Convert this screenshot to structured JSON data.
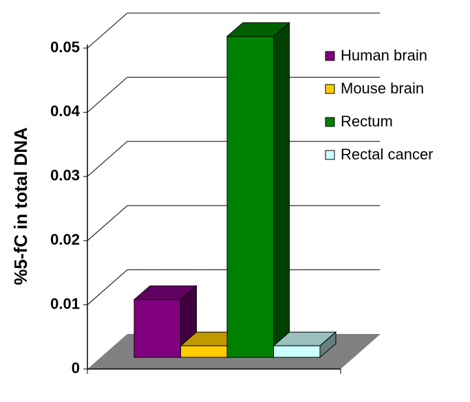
{
  "chart_data": {
    "type": "bar3d",
    "y_label": "%5-fC in total DNA",
    "ylim": [
      0,
      0.05
    ],
    "yticks": [
      0,
      0.01,
      0.02,
      0.03,
      0.04,
      0.05
    ],
    "grid": true,
    "legend": "right",
    "series": [
      {
        "name": "Human brain",
        "color": "#800080",
        "values": [
          0.009
        ]
      },
      {
        "name": "Mouse brain",
        "color": "#ffcc00",
        "values": [
          0.0018
        ]
      },
      {
        "name": "Rectum",
        "color": "#008000",
        "values": [
          0.05
        ]
      },
      {
        "name": "Rectal cancer",
        "color": "#ccffff",
        "values": [
          0.0018
        ]
      }
    ]
  }
}
